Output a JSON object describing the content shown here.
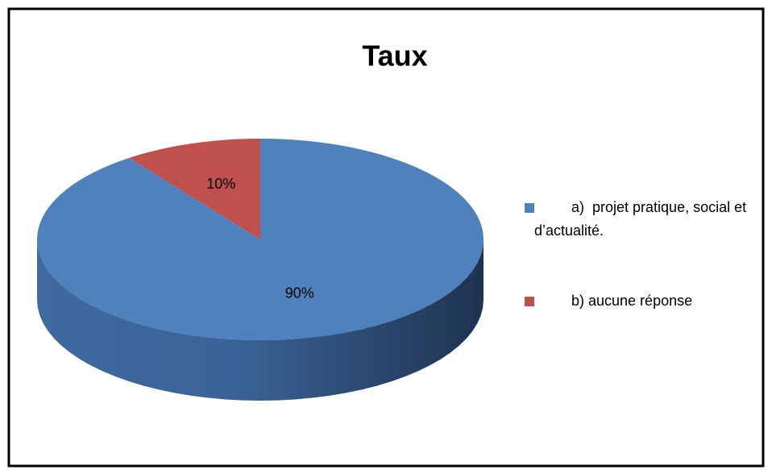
{
  "chart_data": {
    "type": "pie3d",
    "title": "Taux",
    "categories": [
      "a)  projet pratique, social et d’actualité.",
      "b) aucune réponse"
    ],
    "values": [
      90,
      10
    ],
    "value_labels": [
      "90%",
      "10%"
    ],
    "colors": [
      "#4f81bd",
      "#c0504d"
    ],
    "legend": "right"
  }
}
